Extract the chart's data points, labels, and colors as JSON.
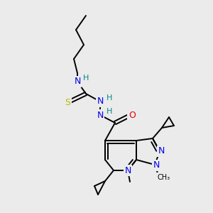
{
  "bg_color": "#ebebeb",
  "atom_colors": {
    "N": "#0000ee",
    "O": "#ee0000",
    "S": "#bbbb00",
    "C": "#000000",
    "H": "#008888"
  },
  "figsize": [
    3.0,
    3.0
  ],
  "dpi": 100
}
